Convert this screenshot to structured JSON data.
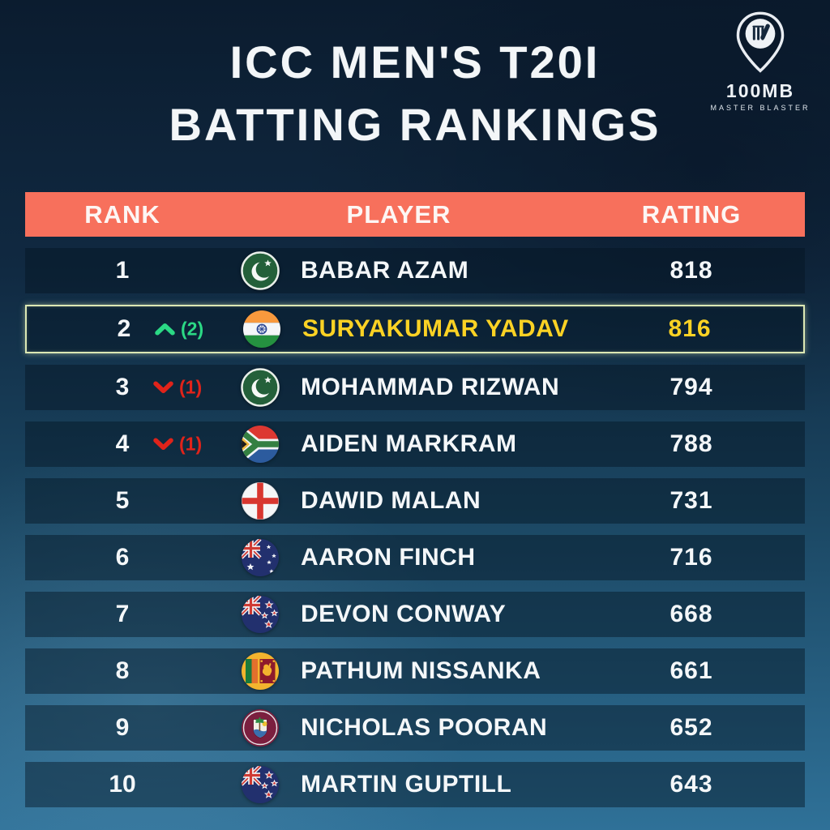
{
  "page": {
    "title": "ICC MEN'S  T20I\nBATTING RANKINGS"
  },
  "logo": {
    "brand": "100MB",
    "tagline": "MASTER BLASTER"
  },
  "colors": {
    "header_bg": "#f7705c",
    "highlight_text": "#fbd224",
    "highlight_border": "#dce8b4",
    "up_green": "#2bd985",
    "down_red": "#e0231a",
    "row_text": "#f4f7f9"
  },
  "table": {
    "columns": [
      "RANK",
      "PLAYER",
      "RATING"
    ],
    "rows": [
      {
        "rank": "1",
        "movement": null,
        "flag": "pakistan",
        "player": "BABAR AZAM",
        "rating": "818",
        "highlight": false
      },
      {
        "rank": "2",
        "movement": {
          "direction": "up",
          "places": "(2)"
        },
        "flag": "india",
        "player": "SURYAKUMAR YADAV",
        "rating": "816",
        "highlight": true
      },
      {
        "rank": "3",
        "movement": {
          "direction": "down",
          "places": "(1)"
        },
        "flag": "pakistan",
        "player": "MOHAMMAD RIZWAN",
        "rating": "794",
        "highlight": false
      },
      {
        "rank": "4",
        "movement": {
          "direction": "down",
          "places": "(1)"
        },
        "flag": "south-africa",
        "player": "AIDEN MARKRAM",
        "rating": "788",
        "highlight": false
      },
      {
        "rank": "5",
        "movement": null,
        "flag": "england",
        "player": "DAWID MALAN",
        "rating": "731",
        "highlight": false
      },
      {
        "rank": "6",
        "movement": null,
        "flag": "australia",
        "player": "AARON FINCH",
        "rating": "716",
        "highlight": false
      },
      {
        "rank": "7",
        "movement": null,
        "flag": "new-zealand",
        "player": "DEVON CONWAY",
        "rating": "668",
        "highlight": false
      },
      {
        "rank": "8",
        "movement": null,
        "flag": "sri-lanka",
        "player": "PATHUM NISSANKA",
        "rating": "661",
        "highlight": false
      },
      {
        "rank": "9",
        "movement": null,
        "flag": "west-indies",
        "player": "NICHOLAS POORAN",
        "rating": "652",
        "highlight": false
      },
      {
        "rank": "10",
        "movement": null,
        "flag": "new-zealand",
        "player": "MARTIN GUPTILL",
        "rating": "643",
        "highlight": false
      }
    ]
  },
  "chart_data": {
    "type": "table",
    "title": "ICC MEN'S T20I BATTING RANKINGS",
    "columns": [
      "RANK",
      "RANK_CHANGE",
      "COUNTRY",
      "PLAYER",
      "RATING"
    ],
    "rows": [
      [
        1,
        0,
        "Pakistan",
        "BABAR AZAM",
        818
      ],
      [
        2,
        2,
        "India",
        "SURYAKUMAR YADAV",
        816
      ],
      [
        3,
        -1,
        "Pakistan",
        "MOHAMMAD RIZWAN",
        794
      ],
      [
        4,
        -1,
        "South Africa",
        "AIDEN MARKRAM",
        788
      ],
      [
        5,
        0,
        "England",
        "DAWID MALAN",
        731
      ],
      [
        6,
        0,
        "Australia",
        "AARON FINCH",
        716
      ],
      [
        7,
        0,
        "New Zealand",
        "DEVON CONWAY",
        668
      ],
      [
        8,
        0,
        "Sri Lanka",
        "PATHUM NISSANKA",
        661
      ],
      [
        9,
        0,
        "West Indies",
        "NICHOLAS POORAN",
        652
      ],
      [
        10,
        0,
        "New Zealand",
        "MARTIN GUPTILL",
        643
      ]
    ],
    "highlighted_row_rank": 2
  }
}
